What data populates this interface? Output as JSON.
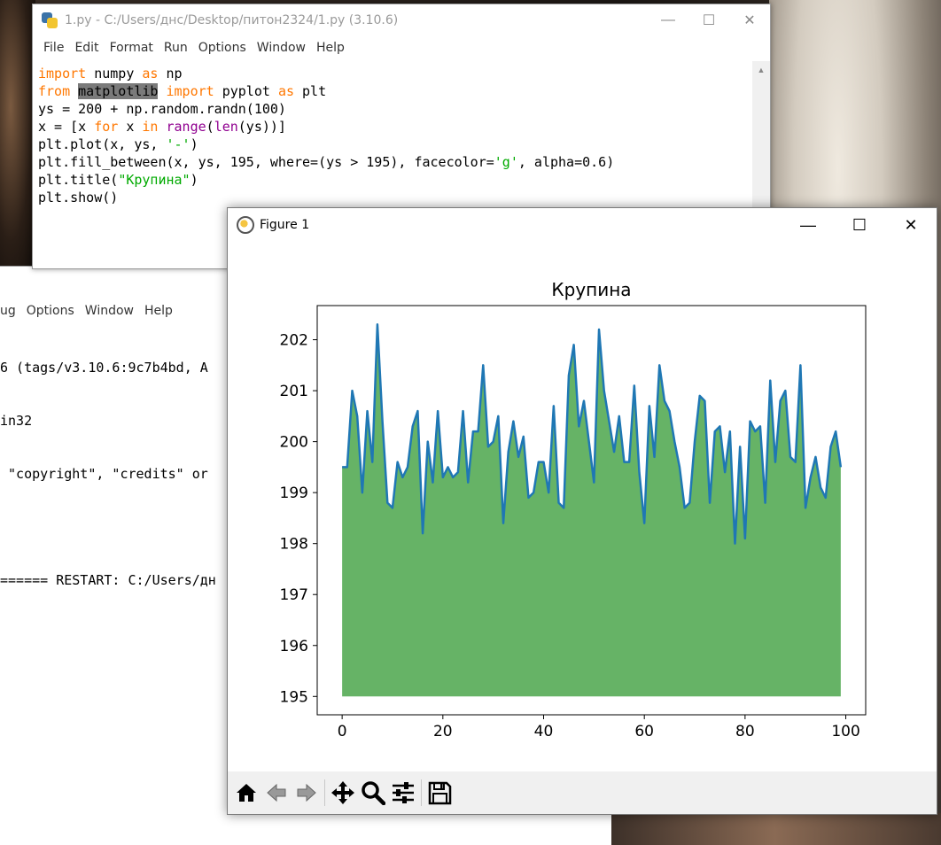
{
  "editor": {
    "title": "1.py - C:/Users/днс/Desktop/питон2324/1.py (3.10.6)",
    "menu": [
      "File",
      "Edit",
      "Format",
      "Run",
      "Options",
      "Window",
      "Help"
    ],
    "code_lines": [
      [
        {
          "t": "import",
          "c": "kw"
        },
        {
          "t": " numpy "
        },
        {
          "t": "as",
          "c": "kw"
        },
        {
          "t": " np"
        }
      ],
      [
        {
          "t": "from",
          "c": "kw"
        },
        {
          "t": " "
        },
        {
          "t": "matplotlib",
          "c": "hl"
        },
        {
          "t": " "
        },
        {
          "t": "import",
          "c": "kw"
        },
        {
          "t": " pyplot "
        },
        {
          "t": "as",
          "c": "kw"
        },
        {
          "t": " plt"
        }
      ],
      [
        {
          "t": "ys = 200 + np.random.randn(100)"
        }
      ],
      [
        {
          "t": "x = [x "
        },
        {
          "t": "for",
          "c": "kw"
        },
        {
          "t": " x "
        },
        {
          "t": "in",
          "c": "kw"
        },
        {
          "t": " "
        },
        {
          "t": "range",
          "c": "bi"
        },
        {
          "t": "("
        },
        {
          "t": "len",
          "c": "bi"
        },
        {
          "t": "(ys))]"
        }
      ],
      [
        {
          "t": "plt.plot(x, ys, "
        },
        {
          "t": "'-'",
          "c": "str"
        },
        {
          "t": ")"
        }
      ],
      [
        {
          "t": "plt.fill_between(x, ys, 195, where=(ys > 195), facecolor="
        },
        {
          "t": "'g'",
          "c": "str"
        },
        {
          "t": ", alpha=0.6)"
        }
      ],
      [
        {
          "t": "plt.title("
        },
        {
          "t": "\"Крупина\"",
          "c": "str"
        },
        {
          "t": ")"
        }
      ],
      [
        {
          "t": "plt.show()"
        }
      ]
    ]
  },
  "shell": {
    "menu": [
      "ug",
      "Options",
      "Window",
      "Help"
    ],
    "lines": [
      "6 (tags/v3.10.6:9c7b4bd, A",
      "in32",
      " \"copyright\", \"credits\" or",
      "",
      "====== RESTART: C:/Users/дн"
    ]
  },
  "figure": {
    "title": "Figure 1",
    "toolbar": [
      "home-icon",
      "back-icon",
      "forward-icon",
      "pan-icon",
      "zoom-icon",
      "configure-icon",
      "save-icon"
    ]
  },
  "chart_data": {
    "type": "area",
    "title": "Крупина",
    "xlabel": "",
    "ylabel": "",
    "xlim": [
      -4.95,
      103.95
    ],
    "ylim": [
      194.64,
      202.67
    ],
    "xticks": [
      0,
      20,
      40,
      60,
      80,
      100
    ],
    "yticks": [
      195,
      196,
      197,
      198,
      199,
      200,
      201,
      202
    ],
    "fill_baseline": 195,
    "line_color": "#1f77b4",
    "fill_color": "#008000",
    "fill_alpha": 0.6,
    "grid": false,
    "x": [
      0,
      1,
      2,
      3,
      4,
      5,
      6,
      7,
      8,
      9,
      10,
      11,
      12,
      13,
      14,
      15,
      16,
      17,
      18,
      19,
      20,
      21,
      22,
      23,
      24,
      25,
      26,
      27,
      28,
      29,
      30,
      31,
      32,
      33,
      34,
      35,
      36,
      37,
      38,
      39,
      40,
      41,
      42,
      43,
      44,
      45,
      46,
      47,
      48,
      49,
      50,
      51,
      52,
      53,
      54,
      55,
      56,
      57,
      58,
      59,
      60,
      61,
      62,
      63,
      64,
      65,
      66,
      67,
      68,
      69,
      70,
      71,
      72,
      73,
      74,
      75,
      76,
      77,
      78,
      79,
      80,
      81,
      82,
      83,
      84,
      85,
      86,
      87,
      88,
      89,
      90,
      91,
      92,
      93,
      94,
      95,
      96,
      97,
      98,
      99
    ],
    "y": [
      199.5,
      199.5,
      201.0,
      200.5,
      199.0,
      200.6,
      199.6,
      202.3,
      200.4,
      198.8,
      198.7,
      199.6,
      199.3,
      199.5,
      200.3,
      200.6,
      198.2,
      200.0,
      199.2,
      200.6,
      199.3,
      199.5,
      199.3,
      199.4,
      200.6,
      199.2,
      200.2,
      200.2,
      201.5,
      199.9,
      200.0,
      200.5,
      198.4,
      199.8,
      200.4,
      199.7,
      200.1,
      198.9,
      199.0,
      199.6,
      199.6,
      199.0,
      200.7,
      198.8,
      198.7,
      201.3,
      201.9,
      200.3,
      200.8,
      200.0,
      199.2,
      202.2,
      201.0,
      200.4,
      199.8,
      200.5,
      199.6,
      199.6,
      201.1,
      199.4,
      198.4,
      200.7,
      199.7,
      201.5,
      200.8,
      200.6,
      200.0,
      199.5,
      198.7,
      198.8,
      200.0,
      200.9,
      200.8,
      198.8,
      200.2,
      200.3,
      199.4,
      200.2,
      198.0,
      199.9,
      198.1,
      200.4,
      200.2,
      200.3,
      198.8,
      201.2,
      199.6,
      200.8,
      201.0,
      199.7,
      199.6,
      201.5,
      198.7,
      199.3,
      199.7,
      199.1,
      198.9,
      199.9,
      200.2,
      199.5
    ]
  }
}
